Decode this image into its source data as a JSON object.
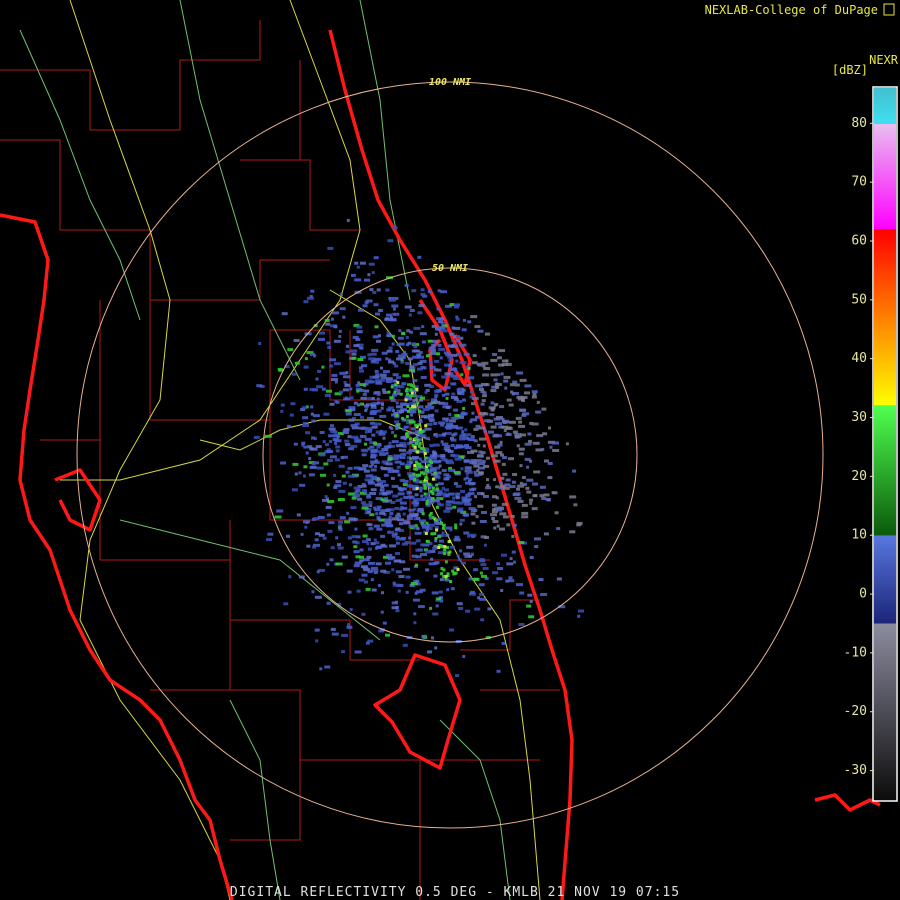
{
  "header": {
    "credit": "NEXLAB-College of DuPage"
  },
  "rings": [
    {
      "label": "100 NMI"
    },
    {
      "label": "50 NMI"
    }
  ],
  "legend": {
    "product": "NEXR",
    "unit": "[dBZ]",
    "range": [
      -35,
      86
    ],
    "ticks": [
      80,
      70,
      60,
      50,
      40,
      30,
      20,
      10,
      0,
      -10,
      -20,
      -30
    ],
    "bands": [
      {
        "from": -35,
        "to": -5,
        "color_low": "#0c0c0c",
        "color_high": "#8c8ca0"
      },
      {
        "from": -5,
        "to": 10,
        "color_low": "#1c2478",
        "color_high": "#5878e0"
      },
      {
        "from": 10,
        "to": 32,
        "color_low": "#0a5a0a",
        "color_high": "#50ff50"
      },
      {
        "from": 32,
        "to": 62,
        "color_low": "#ffff00",
        "color_high": "#ff0000"
      },
      {
        "from": 62,
        "to": 80,
        "color_low": "#ff00ff",
        "color_high": "#e8c0f0"
      },
      {
        "from": 80,
        "to": 86,
        "color_low": "#40e0f0",
        "color_high": "#40c0d0"
      }
    ]
  },
  "footer": "DIGITAL REFLECTIVITY 0.5 DEG - KMLB 21 NOV 19 07:15"
}
